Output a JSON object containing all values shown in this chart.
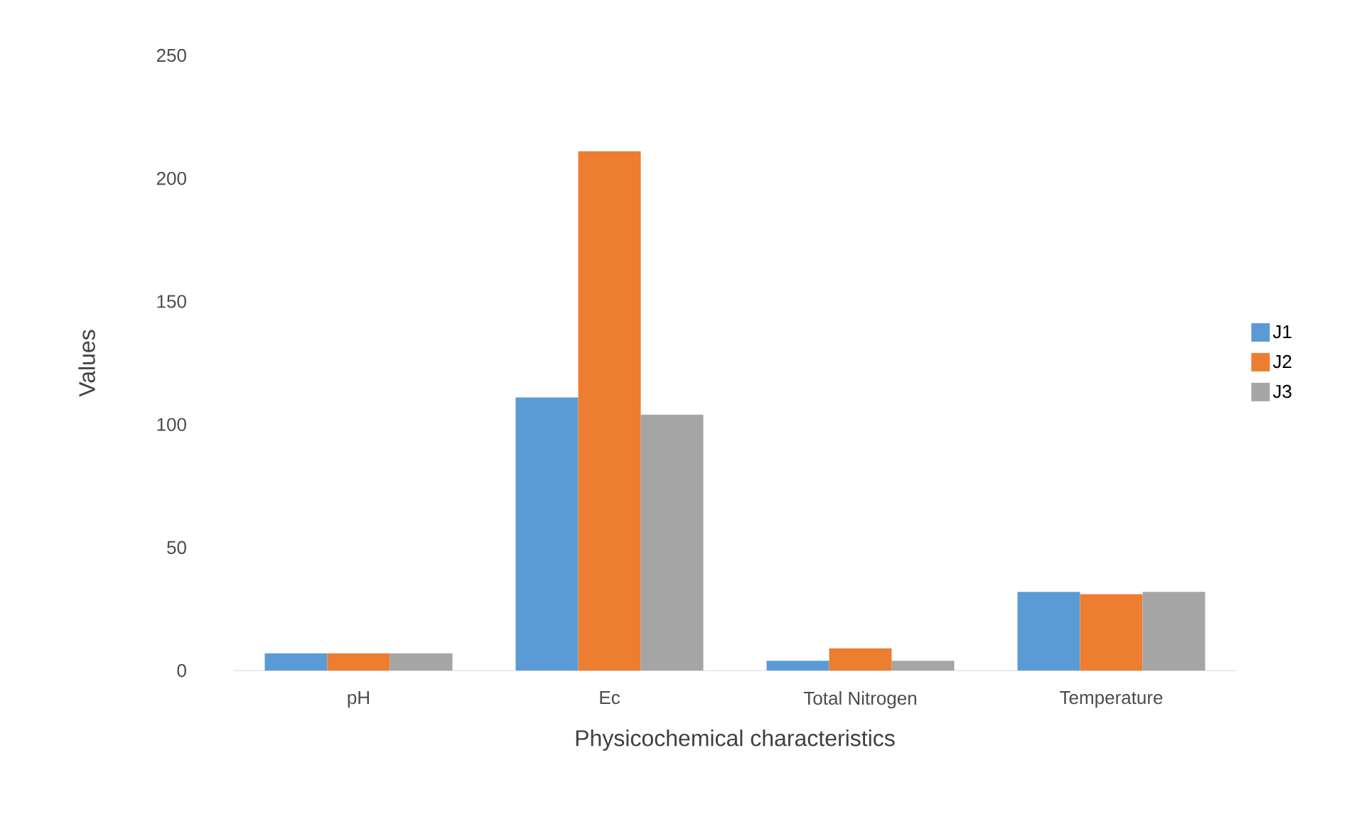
{
  "chart_data": {
    "type": "bar",
    "xlabel": "Physicochemical characteristics",
    "ylabel": "Values",
    "categories": [
      "pH",
      "Ec",
      "Total Nitrogen",
      "Temperature"
    ],
    "series": [
      {
        "name": "J1",
        "color": "#5b9bd5",
        "values": [
          7,
          111,
          4,
          32
        ]
      },
      {
        "name": "J2",
        "color": "#ed7d31",
        "values": [
          7,
          211,
          9,
          31
        ]
      },
      {
        "name": "J3",
        "color": "#a5a5a5",
        "values": [
          7,
          104,
          4,
          32
        ]
      }
    ],
    "ylim": [
      0,
      250
    ],
    "yticks": [
      0,
      50,
      100,
      150,
      200,
      250
    ],
    "legend": "right"
  }
}
